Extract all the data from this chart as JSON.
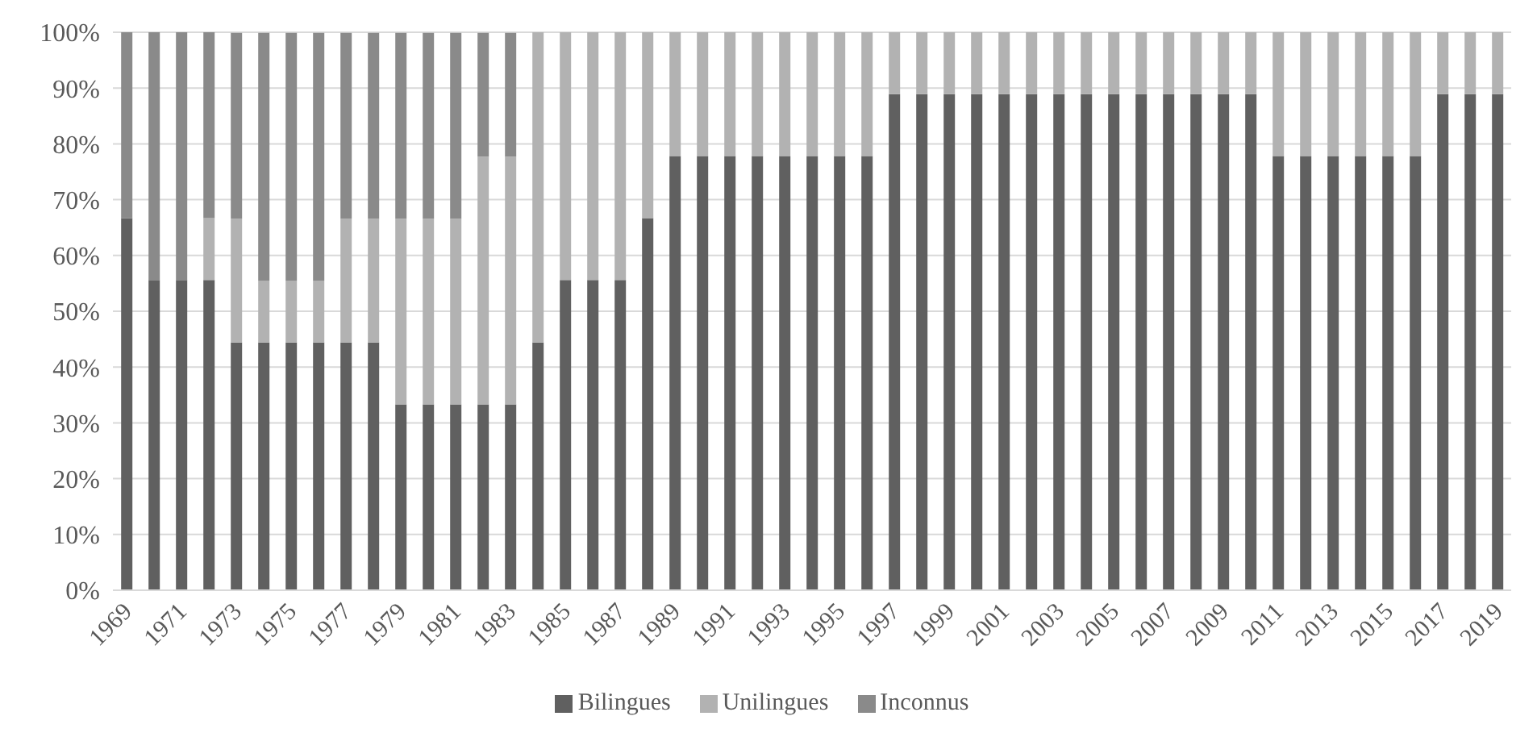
{
  "chart_data": {
    "type": "bar",
    "stacked": true,
    "categories": [
      "1969",
      null,
      "1971",
      null,
      "1973",
      null,
      "1975",
      null,
      "1977",
      null,
      "1979",
      null,
      "1981",
      null,
      "1983",
      null,
      "1985",
      null,
      "1987",
      null,
      "1989",
      null,
      "1991",
      null,
      "1993",
      null,
      "1995",
      null,
      "1997",
      null,
      "1999",
      null,
      "2001",
      null,
      "2003",
      null,
      "2005",
      null,
      "2007",
      null,
      "2009",
      null,
      "2011",
      null,
      "2013",
      null,
      "2015",
      null,
      "2017",
      null,
      "2019"
    ],
    "series": [
      {
        "name": "Bilingues",
        "color": "#606060",
        "values": [
          66.7,
          55.6,
          55.6,
          55.6,
          44.4,
          44.4,
          44.4,
          44.4,
          44.4,
          44.4,
          33.3,
          33.3,
          33.3,
          33.3,
          33.3,
          44.4,
          55.6,
          55.6,
          55.6,
          66.7,
          77.8,
          77.8,
          77.8,
          77.8,
          77.8,
          77.8,
          77.8,
          77.8,
          88.9,
          88.9,
          88.9,
          88.9,
          88.9,
          88.9,
          88.9,
          88.9,
          88.9,
          88.9,
          88.9,
          88.9,
          88.9,
          88.9,
          77.8,
          77.8,
          77.8,
          77.8,
          77.8,
          77.8,
          88.9,
          88.9,
          88.9
        ]
      },
      {
        "name": "Unilingues",
        "color": "#b2b2b2",
        "values": [
          0,
          0,
          0,
          11.1,
          22.2,
          11.1,
          11.1,
          11.1,
          22.2,
          22.2,
          33.3,
          33.3,
          33.3,
          44.4,
          44.4,
          55.6,
          44.4,
          44.4,
          44.4,
          33.3,
          22.2,
          22.2,
          22.2,
          22.2,
          22.2,
          22.2,
          22.2,
          22.2,
          11.1,
          11.1,
          11.1,
          11.1,
          11.1,
          11.1,
          11.1,
          11.1,
          11.1,
          11.1,
          11.1,
          11.1,
          11.1,
          11.1,
          22.2,
          22.2,
          22.2,
          22.2,
          22.2,
          22.2,
          11.1,
          11.1,
          11.1
        ]
      },
      {
        "name": "Inconnus",
        "color": "#8a8a8a",
        "values": [
          33.3,
          44.4,
          44.4,
          33.3,
          33.3,
          44.4,
          44.4,
          44.4,
          33.3,
          33.3,
          33.3,
          33.3,
          33.3,
          22.2,
          22.2,
          0,
          0,
          0,
          0,
          0,
          0,
          0,
          0,
          0,
          0,
          0,
          0,
          0,
          0,
          0,
          0,
          0,
          0,
          0,
          0,
          0,
          0,
          0,
          0,
          0,
          0,
          0,
          0,
          0,
          0,
          0,
          0,
          0,
          0,
          0,
          0
        ]
      }
    ],
    "ylim": [
      0,
      100
    ],
    "yticks": [
      {
        "value": 0,
        "label": "0%"
      },
      {
        "value": 10,
        "label": "10%"
      },
      {
        "value": 20,
        "label": "20%"
      },
      {
        "value": 30,
        "label": "30%"
      },
      {
        "value": 40,
        "label": "40%"
      },
      {
        "value": 50,
        "label": "50%"
      },
      {
        "value": 60,
        "label": "60%"
      },
      {
        "value": 70,
        "label": "70%"
      },
      {
        "value": 80,
        "label": "80%"
      },
      {
        "value": 90,
        "label": "90%"
      },
      {
        "value": 100,
        "label": "100%"
      }
    ],
    "grid": "y",
    "legend": "bottom"
  }
}
